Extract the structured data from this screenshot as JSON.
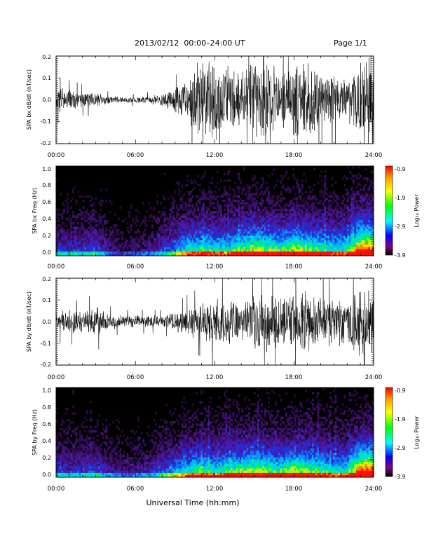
{
  "header": {
    "title": "2013/02/12  00:00–24:00 UT",
    "page": "Page 1/1"
  },
  "footer": {
    "xlabel": "Universal Time (hh:mm)"
  },
  "colorbar": {
    "title": "Log₁₀ Power",
    "ticks": [
      "-0.9",
      "-1.9",
      "-2.9",
      "-3.9"
    ],
    "colors": [
      "#ff0000",
      "#ffa500",
      "#ffff00",
      "#00ff00",
      "#00ffff",
      "#0000ff",
      "#800080",
      "#000000"
    ]
  },
  "chart_data": [
    {
      "type": "line",
      "title": "",
      "ylabel": "SPA bx dB/dt (nT/sec)",
      "xlabel": "",
      "xlim": [
        "00:00",
        "24:00"
      ],
      "ylim": [
        -0.2,
        0.2
      ],
      "x_ticks": [
        "00:00",
        "06:00",
        "12:00",
        "18:00",
        "24:00"
      ],
      "y_ticks": [
        "0.2",
        "0.1",
        "0.0",
        "-0.1",
        "-0.2"
      ],
      "series": [
        {
          "x_hours": [
            0,
            1,
            2,
            3,
            4,
            5,
            6,
            7,
            8,
            9,
            10,
            11,
            12,
            13,
            14,
            15,
            16,
            17,
            18,
            19,
            20,
            21,
            22,
            23,
            24
          ],
          "envelope": [
            0.06,
            0.05,
            0.04,
            0.04,
            0.02,
            0.015,
            0.015,
            0.02,
            0.03,
            0.06,
            0.12,
            0.2,
            0.2,
            0.18,
            0.15,
            0.2,
            0.2,
            0.12,
            0.2,
            0.2,
            0.12,
            0.12,
            0.1,
            0.2,
            0.2
          ]
        }
      ]
    },
    {
      "type": "heatmap",
      "title": "",
      "ylabel": "SPA bx Freq (Hz)",
      "xlabel": "",
      "xlim": [
        "00:00",
        "24:00"
      ],
      "ylim": [
        0.0,
        1.0
      ],
      "zlim": [
        -3.9,
        -0.9
      ],
      "x_ticks": [
        "00:00",
        "06:00",
        "12:00",
        "18:00",
        "24:00"
      ],
      "y_ticks": [
        "1.0",
        "0.8",
        "0.6",
        "0.4",
        "0.2",
        "0.0"
      ],
      "activity_by_hour": [
        0.3,
        0.3,
        0.3,
        0.35,
        0.2,
        0.15,
        0.15,
        0.2,
        0.3,
        0.4,
        0.55,
        0.6,
        0.55,
        0.55,
        0.65,
        0.7,
        0.65,
        0.6,
        0.7,
        0.65,
        0.6,
        0.55,
        0.55,
        0.9,
        0.9
      ]
    },
    {
      "type": "line",
      "title": "",
      "ylabel": "SPA by dB/dt (nT/sec)",
      "xlabel": "",
      "xlim": [
        "00:00",
        "24:00"
      ],
      "ylim": [
        -0.2,
        0.2
      ],
      "x_ticks": [
        "00:00",
        "06:00",
        "12:00",
        "18:00",
        "24:00"
      ],
      "y_ticks": [
        "0.2",
        "0.1",
        "0.0",
        "-0.1",
        "-0.2"
      ],
      "series": [
        {
          "x_hours": [
            0,
            1,
            2,
            3,
            4,
            5,
            6,
            7,
            8,
            9,
            10,
            11,
            12,
            13,
            14,
            15,
            16,
            17,
            18,
            19,
            20,
            21,
            22,
            23,
            24
          ],
          "envelope": [
            0.05,
            0.06,
            0.05,
            0.08,
            0.04,
            0.03,
            0.03,
            0.03,
            0.03,
            0.05,
            0.07,
            0.09,
            0.12,
            0.12,
            0.1,
            0.14,
            0.16,
            0.12,
            0.14,
            0.16,
            0.12,
            0.12,
            0.12,
            0.18,
            0.2
          ]
        }
      ]
    },
    {
      "type": "heatmap",
      "title": "",
      "ylabel": "SPA by Freq (Hz)",
      "xlabel": "",
      "xlim": [
        "00:00",
        "24:00"
      ],
      "ylim": [
        0.0,
        1.0
      ],
      "zlim": [
        -3.9,
        -0.9
      ],
      "x_ticks": [
        "00:00",
        "06:00",
        "12:00",
        "18:00",
        "24:00"
      ],
      "y_ticks": [
        "1.0",
        "0.8",
        "0.6",
        "0.4",
        "0.2",
        "0.0"
      ],
      "activity_by_hour": [
        0.35,
        0.3,
        0.3,
        0.35,
        0.25,
        0.2,
        0.2,
        0.25,
        0.35,
        0.45,
        0.55,
        0.6,
        0.55,
        0.6,
        0.65,
        0.7,
        0.65,
        0.6,
        0.7,
        0.65,
        0.6,
        0.55,
        0.55,
        0.9,
        0.9
      ]
    }
  ]
}
